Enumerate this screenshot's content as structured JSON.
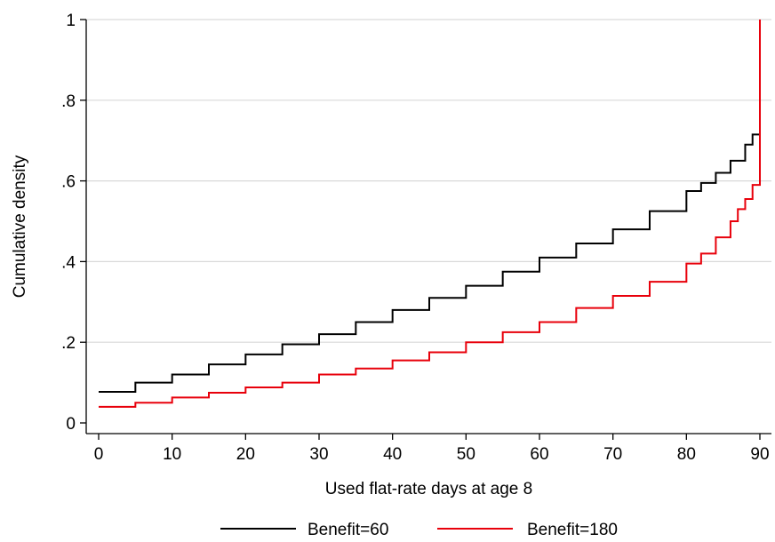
{
  "chart_data": {
    "type": "line",
    "step": true,
    "xlabel": "Used flat-rate days at age 8",
    "ylabel": "Cumulative density",
    "xlim": [
      0,
      90
    ],
    "ylim": [
      0,
      1
    ],
    "xticks": [
      0,
      10,
      20,
      30,
      40,
      50,
      60,
      70,
      80,
      90
    ],
    "yticks": [
      0,
      0.2,
      0.4,
      0.6,
      0.8,
      1
    ],
    "ytick_labels": [
      "0",
      ".2",
      ".4",
      ".6",
      ".8",
      "1"
    ],
    "grid": {
      "horizontal": true,
      "vertical": false
    },
    "legend": "bottom",
    "series": [
      {
        "name": "Benefit=60",
        "color": "#000000",
        "x": [
          0,
          5,
          10,
          15,
          20,
          25,
          30,
          35,
          40,
          45,
          50,
          55,
          60,
          65,
          70,
          75,
          80,
          82,
          84,
          86,
          88,
          89,
          90
        ],
        "y": [
          0.077,
          0.1,
          0.12,
          0.145,
          0.17,
          0.195,
          0.22,
          0.25,
          0.28,
          0.31,
          0.34,
          0.375,
          0.41,
          0.445,
          0.48,
          0.525,
          0.575,
          0.595,
          0.62,
          0.65,
          0.69,
          0.715,
          0.74
        ]
      },
      {
        "name": "Benefit=180",
        "color": "#e8000b",
        "x": [
          0,
          5,
          10,
          15,
          20,
          25,
          30,
          35,
          40,
          45,
          50,
          55,
          60,
          65,
          70,
          75,
          80,
          82,
          84,
          86,
          87,
          88,
          89,
          90,
          90
        ],
        "y": [
          0.04,
          0.05,
          0.063,
          0.075,
          0.088,
          0.1,
          0.12,
          0.135,
          0.155,
          0.175,
          0.2,
          0.225,
          0.25,
          0.285,
          0.315,
          0.35,
          0.395,
          0.42,
          0.46,
          0.5,
          0.53,
          0.555,
          0.59,
          0.61,
          1.0
        ]
      }
    ]
  }
}
